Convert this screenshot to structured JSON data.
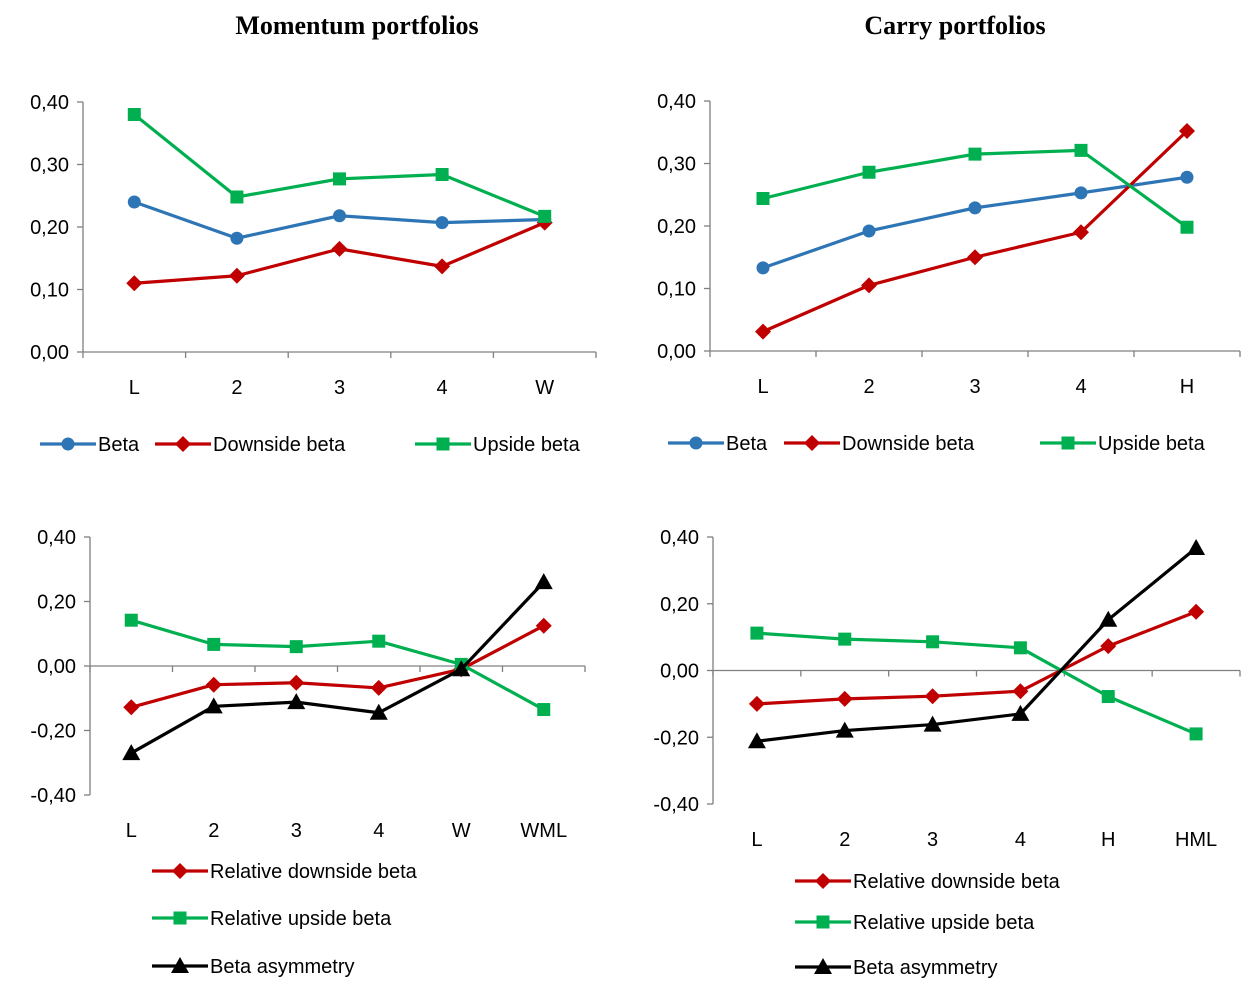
{
  "titles": {
    "left": "Momentum portfolios",
    "right": "Carry portfolios"
  },
  "chart_data": [
    {
      "id": "mom_top",
      "type": "line",
      "categories": [
        "L",
        "2",
        "3",
        "4",
        "W"
      ],
      "ylim": [
        0,
        0.4
      ],
      "yticks": [
        "0,00",
        "0,10",
        "0,20",
        "0,30",
        "0,40"
      ],
      "grid": false,
      "legend_position": "bottom",
      "series": [
        {
          "name": "Beta",
          "marker": "circle",
          "color": "#2e75b6",
          "values": [
            0.24,
            0.182,
            0.218,
            0.207,
            0.212
          ]
        },
        {
          "name": "Downside beta",
          "marker": "diamond",
          "color": "#c00000",
          "values": [
            0.11,
            0.122,
            0.165,
            0.137,
            0.207
          ]
        },
        {
          "name": "Upside beta",
          "marker": "square",
          "color": "#00b050",
          "values": [
            0.38,
            0.248,
            0.277,
            0.284,
            0.217
          ]
        }
      ]
    },
    {
      "id": "carry_top",
      "type": "line",
      "categories": [
        "L",
        "2",
        "3",
        "4",
        "H"
      ],
      "ylim": [
        0,
        0.4
      ],
      "yticks": [
        "0,00",
        "0,10",
        "0,20",
        "0,30",
        "0,40"
      ],
      "grid": false,
      "legend_position": "bottom",
      "series": [
        {
          "name": "Beta",
          "marker": "circle",
          "color": "#2e75b6",
          "values": [
            0.133,
            0.192,
            0.229,
            0.253,
            0.278
          ]
        },
        {
          "name": "Downside beta",
          "marker": "diamond",
          "color": "#c00000",
          "values": [
            0.031,
            0.105,
            0.15,
            0.19,
            0.352
          ]
        },
        {
          "name": "Upside beta",
          "marker": "square",
          "color": "#00b050",
          "values": [
            0.244,
            0.286,
            0.315,
            0.321,
            0.198
          ]
        }
      ]
    },
    {
      "id": "mom_bottom",
      "type": "line",
      "categories": [
        "L",
        "2",
        "3",
        "4",
        "W",
        "WML"
      ],
      "ylim": [
        -0.4,
        0.4
      ],
      "yticks": [
        "-0,40",
        "-0,20",
        "0,00",
        "0,20",
        "0,40"
      ],
      "grid": false,
      "legend_position": "bottom",
      "series": [
        {
          "name": "Relative downside beta",
          "marker": "diamond",
          "color": "#c00000",
          "values": [
            -0.128,
            -0.058,
            -0.052,
            -0.068,
            -0.01,
            0.125
          ]
        },
        {
          "name": "Relative upside beta",
          "marker": "square",
          "color": "#00b050",
          "values": [
            0.142,
            0.067,
            0.06,
            0.077,
            0.005,
            -0.135
          ]
        },
        {
          "name": "Beta asymmetry",
          "marker": "triangle",
          "color": "#000000",
          "values": [
            -0.27,
            -0.125,
            -0.112,
            -0.145,
            -0.01,
            0.26
          ]
        }
      ]
    },
    {
      "id": "carry_bottom",
      "type": "line",
      "categories": [
        "L",
        "2",
        "3",
        "4",
        "H",
        "HML"
      ],
      "ylim": [
        -0.4,
        0.4
      ],
      "yticks": [
        "-0,40",
        "-0,20",
        "0,00",
        "0,20",
        "0,40"
      ],
      "grid": false,
      "legend_position": "bottom",
      "series": [
        {
          "name": "Relative downside beta",
          "marker": "diamond",
          "color": "#c00000",
          "values": [
            -0.1,
            -0.085,
            -0.077,
            -0.062,
            0.073,
            0.176
          ]
        },
        {
          "name": "Relative upside beta",
          "marker": "square",
          "color": "#00b050",
          "values": [
            0.112,
            0.094,
            0.086,
            0.068,
            -0.078,
            -0.19
          ]
        },
        {
          "name": "Beta asymmetry",
          "marker": "triangle",
          "color": "#000000",
          "values": [
            -0.212,
            -0.18,
            -0.162,
            -0.13,
            0.152,
            0.367
          ]
        }
      ]
    }
  ]
}
